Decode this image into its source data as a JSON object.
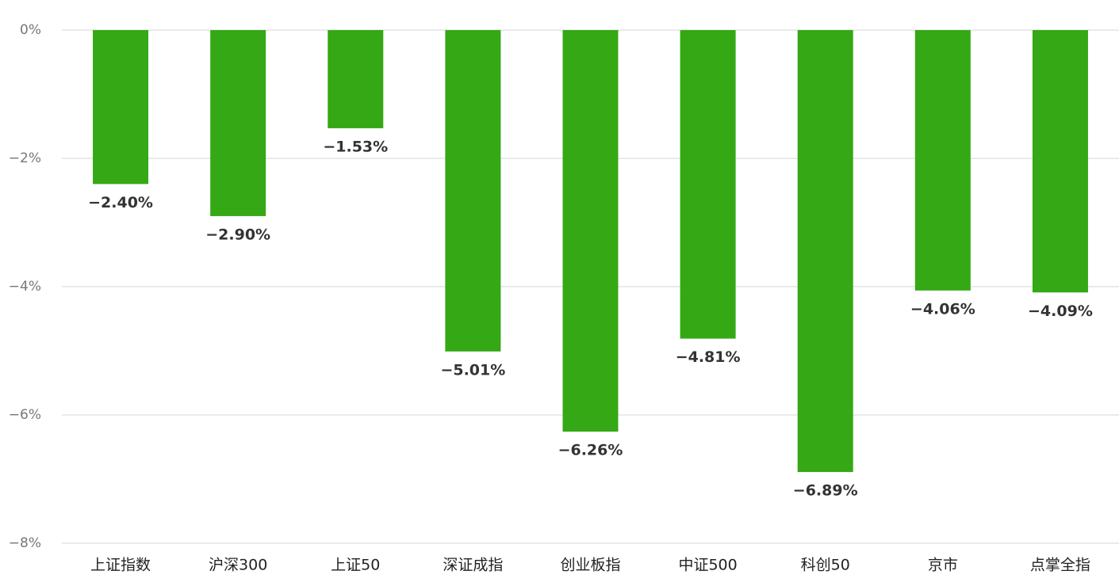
{
  "chart_data": {
    "type": "bar",
    "categories": [
      "上证指数",
      "沪深300",
      "上证50",
      "深证成指",
      "创业板指",
      "中证500",
      "科创50",
      "京市",
      "点掌全指"
    ],
    "values": [
      -2.4,
      -2.9,
      -1.53,
      -5.01,
      -6.26,
      -4.81,
      -6.89,
      -4.06,
      -4.09
    ],
    "value_labels": [
      "−2.40%",
      "−2.90%",
      "−1.53%",
      "−5.01%",
      "−6.26%",
      "−4.81%",
      "−6.89%",
      "−4.06%",
      "−4.09%"
    ],
    "color": "#34a815",
    "ylim": [
      0,
      -8
    ],
    "yticks": [
      {
        "value": 0,
        "label": "0%"
      },
      {
        "value": -2,
        "label": "−2%"
      },
      {
        "value": -4,
        "label": "−4%"
      },
      {
        "value": -6,
        "label": "−6%"
      },
      {
        "value": -8,
        "label": "−8%"
      }
    ],
    "grid": true
  }
}
